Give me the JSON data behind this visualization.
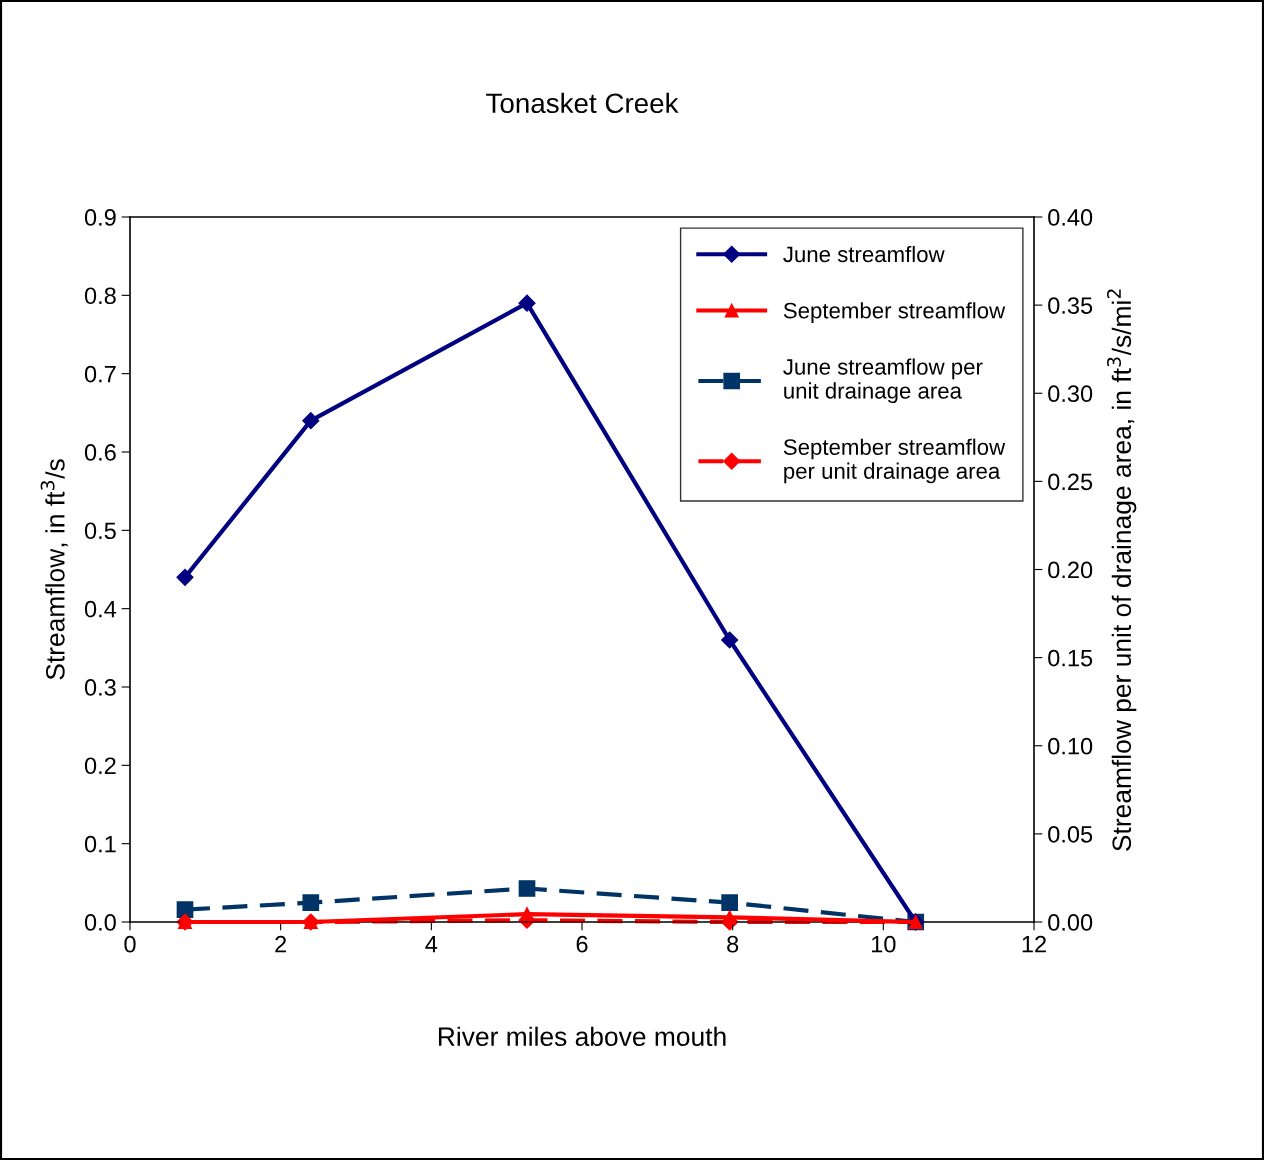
{
  "chart_data": {
    "type": "line",
    "title": "Tonasket Creek",
    "xlabel": "River miles above mouth",
    "ylabel": "Streamflow, in ft$^{3}$/s",
    "y2label": "Streamflow per unit of drainage area, in ft$^{3}$/s/mi$^{2}$",
    "x": [
      0.73,
      2.4,
      5.27,
      7.96,
      10.43
    ],
    "series": [
      {
        "name": "June streamflow",
        "color": "#000080",
        "values": [
          0.44,
          0.64,
          0.79,
          0.36,
          0
        ],
        "marker": "diamond",
        "line_style": "solid"
      },
      {
        "name": "September streamflow",
        "color": "#ff0000",
        "values": [
          0,
          0,
          0.01,
          0.006,
          0
        ],
        "marker": "triangle",
        "line_style": "solid"
      },
      {
        "name": "June streamflow per\nunit drainage area",
        "color": "#003366",
        "values": [
          0.007,
          0.011,
          0.019,
          0.011,
          0
        ],
        "marker": "square",
        "line_style": "dashed",
        "axis": "y2"
      },
      {
        "name": "September streamflow\nper unit drainage area",
        "color": "#ff0000",
        "values": [
          0,
          0,
          0.001,
          0,
          0
        ],
        "marker": "diamond",
        "line_style": "dashed",
        "axis": "y2"
      }
    ],
    "xlim": [
      0,
      12
    ],
    "xticks": [
      0,
      2,
      4,
      6,
      8,
      10,
      12
    ],
    "ylim": [
      0,
      0.9
    ],
    "yticks": [
      {
        "value": 0,
        "label": "0.0"
      },
      0.1,
      0.2,
      0.3,
      0.4,
      0.5,
      0.6,
      0.7,
      0.8,
      0.9
    ],
    "y2lim": [
      0,
      0.4
    ],
    "y2ticks": [
      {
        "value": 0,
        "label": "0.00"
      },
      0.05,
      {
        "value": 0.1,
        "label": "0.10"
      },
      0.15,
      {
        "value": 0.2,
        "label": "0.20"
      },
      0.25,
      {
        "value": 0.3,
        "label": "0.30"
      },
      0.35,
      {
        "value": 0.4,
        "label": "0.40"
      }
    ],
    "grid": false,
    "legend": "top right"
  }
}
